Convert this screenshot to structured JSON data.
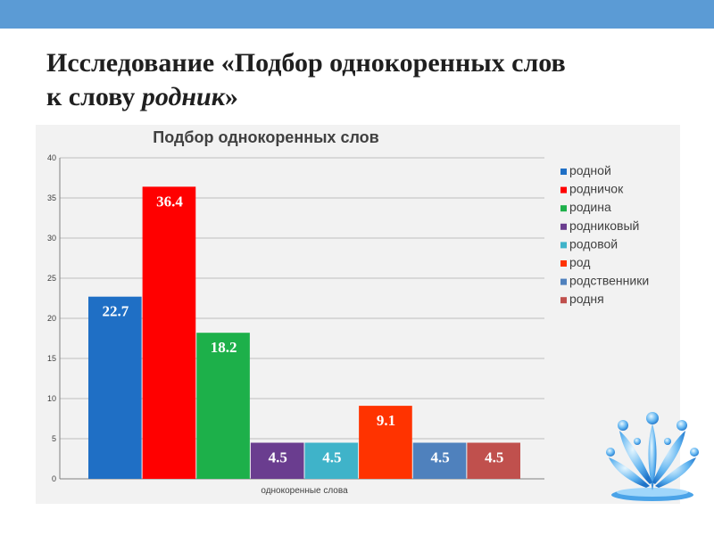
{
  "slide": {
    "title_line1": "Исследование «Подбор однокоренных слов",
    "title_line2_prefix": "к  слову ",
    "title_line2_word": "родник",
    "title_line2_suffix": "»"
  },
  "colors": {
    "top_bar": "#5b9bd5",
    "panel": "#f2f2f2",
    "gridline": "#bfbfbf"
  },
  "chart_data": {
    "type": "bar",
    "title": "Подбор однокоренных слов",
    "xlabel": "однокоренные слова",
    "ylabel": "",
    "ylim": [
      0,
      40
    ],
    "yticks": [
      0,
      5,
      10,
      15,
      20,
      25,
      30,
      35,
      40
    ],
    "grid": true,
    "legend_position": "right",
    "categories": [
      "однокоренные слова"
    ],
    "series": [
      {
        "name": "родной",
        "values": [
          22.7
        ],
        "label": "22.7",
        "color": "#1f6fc5"
      },
      {
        "name": "родничок",
        "values": [
          36.4
        ],
        "label": "36.4",
        "color": "#ff0000"
      },
      {
        "name": "родина",
        "values": [
          18.2
        ],
        "label": "18.2",
        "color": "#1db04a"
      },
      {
        "name": "родниковый",
        "values": [
          4.5
        ],
        "label": "4.5",
        "color": "#6a3d8f"
      },
      {
        "name": "родовой",
        "values": [
          4.5
        ],
        "label": "4.5",
        "color": "#3fb3c9"
      },
      {
        "name": "род",
        "values": [
          9.1
        ],
        "label": "9.1",
        "color": "#ff3300"
      },
      {
        "name": "родственники",
        "values": [
          4.5
        ],
        "label": "4.5",
        "color": "#4f81bd"
      },
      {
        "name": "родня",
        "values": [
          4.5
        ],
        "label": "4.5",
        "color": "#c0504d"
      }
    ]
  }
}
